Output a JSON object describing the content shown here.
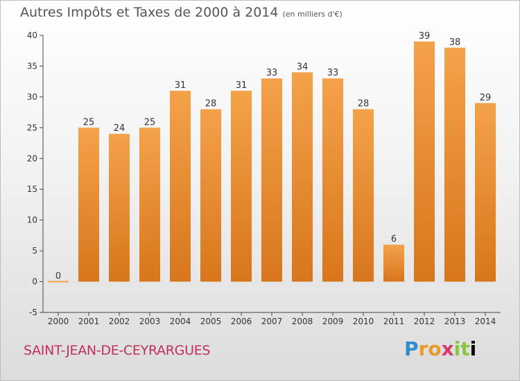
{
  "header": {
    "title": "Autres Impôts et Taxes de 2000 à 2014",
    "unit": "(en milliers d'€)"
  },
  "footer": {
    "commune": "SAINT-JEAN-DE-CEYRARGUES",
    "brand": "Proxiti"
  },
  "colors": {
    "bar_light": "#f4a24a",
    "bar_dark": "#d8761c",
    "commune": "#c0305a"
  },
  "chart_data": {
    "type": "bar",
    "categories": [
      "2000",
      "2001",
      "2002",
      "2003",
      "2004",
      "2005",
      "2006",
      "2007",
      "2008",
      "2009",
      "2010",
      "2011",
      "2012",
      "2013",
      "2014"
    ],
    "values": [
      0,
      25,
      24,
      25,
      31,
      28,
      31,
      33,
      34,
      33,
      28,
      6,
      39,
      38,
      29
    ],
    "title": "Autres Impôts et Taxes de 2000 à 2014",
    "ylabel": "",
    "xlabel": "",
    "ylim": [
      -5,
      40
    ],
    "yticks": [
      -5,
      0,
      5,
      10,
      15,
      20,
      25,
      30,
      35,
      40
    ],
    "grid": false,
    "legend": "none"
  }
}
